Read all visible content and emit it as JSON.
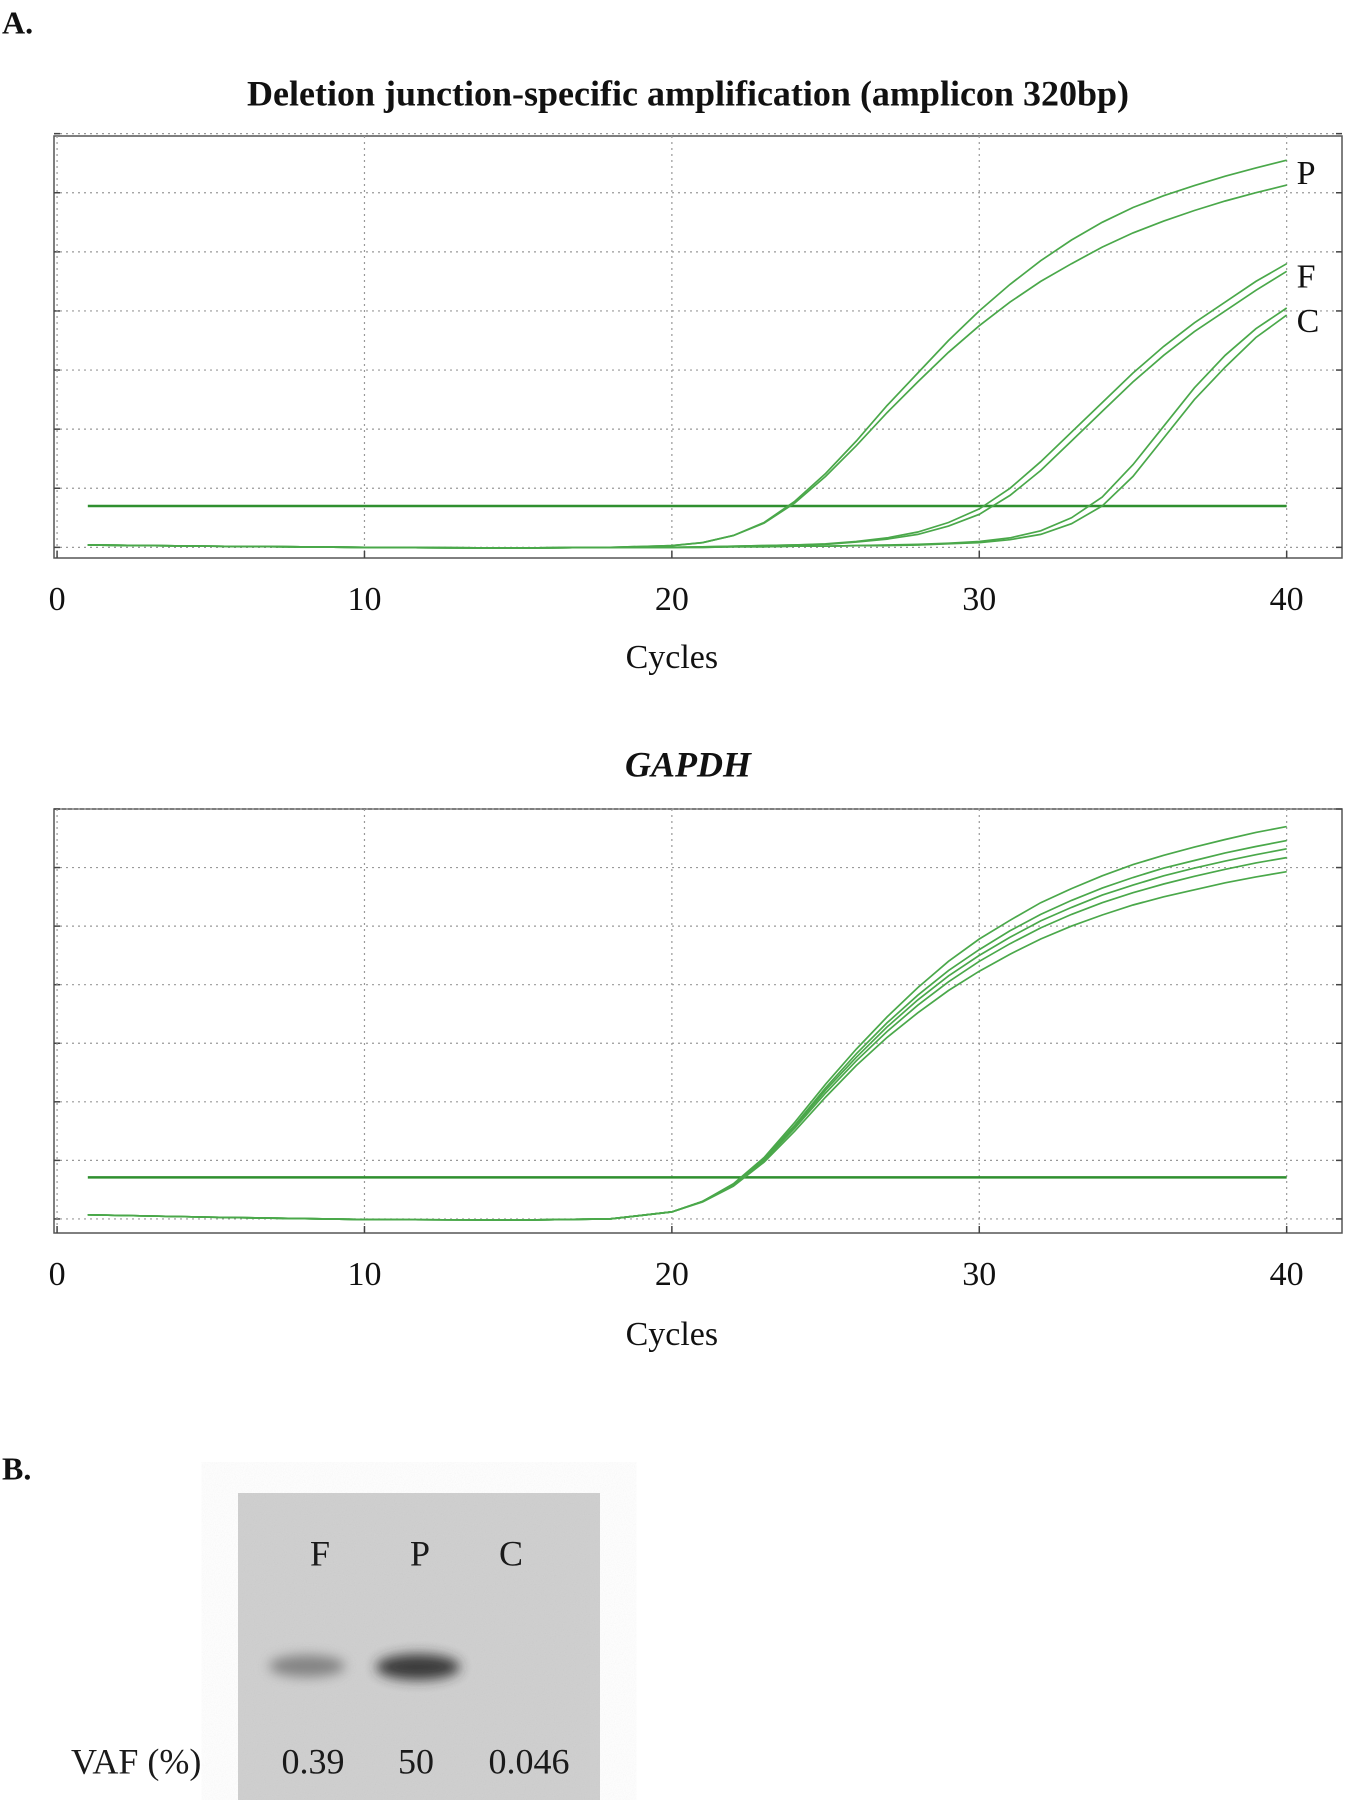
{
  "panels": [
    "A.",
    "B."
  ],
  "chart_data": [
    {
      "type": "line",
      "title": "Deletion junction-specific amplification (amplicon 320bp)",
      "x_label": "Cycles",
      "x": [
        1,
        5,
        10,
        15,
        18,
        20,
        21,
        22,
        23,
        24,
        25,
        26,
        27,
        28,
        29,
        30,
        31,
        32,
        33,
        34,
        35,
        36,
        37,
        38,
        39,
        40
      ],
      "xlim": [
        -0.1,
        41.8
      ],
      "xticks": [
        0,
        10,
        20,
        30,
        40
      ],
      "ylim": [
        -0.18,
        6.96
      ],
      "yticks": [
        0,
        1,
        2,
        3,
        4,
        5,
        6,
        7
      ],
      "grid": true,
      "threshold": 0.7,
      "threshold_color": "#2f8f2f",
      "color": "#4aa84a",
      "series": [
        {
          "name": "P",
          "replicates": [
            [
              0.04,
              0.02,
              0,
              -0.01,
              0,
              0.03,
              0.08,
              0.2,
              0.42,
              0.78,
              1.25,
              1.8,
              2.4,
              2.95,
              3.5,
              4.0,
              4.45,
              4.85,
              5.2,
              5.5,
              5.75,
              5.95,
              6.12,
              6.28,
              6.42,
              6.55
            ],
            [
              0.04,
              0.02,
              0,
              -0.01,
              0,
              0.03,
              0.08,
              0.2,
              0.41,
              0.75,
              1.2,
              1.72,
              2.28,
              2.8,
              3.3,
              3.75,
              4.15,
              4.5,
              4.8,
              5.08,
              5.32,
              5.52,
              5.7,
              5.86,
              6.0,
              6.13
            ]
          ]
        },
        {
          "name": "F",
          "replicates": [
            [
              0.04,
              0.02,
              0,
              -0.01,
              0,
              0,
              0.01,
              0.02,
              0.03,
              0.04,
              0.06,
              0.1,
              0.16,
              0.26,
              0.42,
              0.65,
              1.0,
              1.45,
              1.95,
              2.45,
              2.95,
              3.4,
              3.8,
              4.15,
              4.5,
              4.8
            ],
            [
              0.04,
              0.02,
              0,
              -0.01,
              0,
              0,
              0.01,
              0.02,
              0.03,
              0.04,
              0.05,
              0.09,
              0.14,
              0.22,
              0.36,
              0.56,
              0.88,
              1.3,
              1.8,
              2.3,
              2.8,
              3.25,
              3.65,
              4.0,
              4.35,
              4.67
            ]
          ]
        },
        {
          "name": "C",
          "replicates": [
            [
              0.04,
              0.02,
              0,
              -0.01,
              0,
              0,
              0,
              0.01,
              0.01,
              0.02,
              0.02,
              0.03,
              0.04,
              0.05,
              0.07,
              0.1,
              0.16,
              0.28,
              0.5,
              0.85,
              1.4,
              2.05,
              2.7,
              3.25,
              3.7,
              4.05
            ],
            [
              0.04,
              0.02,
              0,
              -0.01,
              0,
              0,
              0,
              0.01,
              0.01,
              0.02,
              0.02,
              0.03,
              0.03,
              0.04,
              0.06,
              0.08,
              0.13,
              0.22,
              0.4,
              0.7,
              1.2,
              1.85,
              2.5,
              3.05,
              3.55,
              3.93
            ]
          ]
        }
      ]
    },
    {
      "type": "line",
      "title": "GAPDH",
      "x_label": "Cycles",
      "x": [
        1,
        5,
        10,
        15,
        18,
        20,
        21,
        22,
        23,
        24,
        25,
        26,
        27,
        28,
        29,
        30,
        31,
        32,
        33,
        34,
        35,
        36,
        37,
        38,
        39,
        40
      ],
      "xlim": [
        -0.1,
        41.8
      ],
      "xticks": [
        0,
        10,
        20,
        30,
        40
      ],
      "ylim": [
        -0.24,
        7.0
      ],
      "yticks": [
        0,
        1,
        2,
        3,
        4,
        5,
        6,
        7
      ],
      "grid": true,
      "threshold": 0.71,
      "threshold_color": "#2f8f2f",
      "color": "#4aa84a",
      "series": [
        {
          "replicates": [
            [
              0.07,
              0.03,
              -0.01,
              -0.02,
              0,
              0.12,
              0.3,
              0.6,
              1.05,
              1.65,
              2.3,
              2.9,
              3.45,
              3.95,
              4.4,
              4.78,
              5.1,
              5.4,
              5.64,
              5.86,
              6.05,
              6.21,
              6.35,
              6.48,
              6.6,
              6.7
            ],
            [
              0.07,
              0.03,
              -0.01,
              -0.02,
              0,
              0.12,
              0.3,
              0.59,
              1.03,
              1.6,
              2.24,
              2.82,
              3.35,
              3.82,
              4.24,
              4.6,
              4.92,
              5.2,
              5.44,
              5.65,
              5.83,
              5.99,
              6.12,
              6.25,
              6.36,
              6.46
            ],
            [
              0.07,
              0.03,
              -0.01,
              -0.02,
              0,
              0.12,
              0.3,
              0.58,
              1.02,
              1.58,
              2.2,
              2.76,
              3.28,
              3.74,
              4.15,
              4.5,
              4.81,
              5.09,
              5.32,
              5.53,
              5.7,
              5.86,
              5.99,
              6.11,
              6.22,
              6.32
            ],
            [
              0.07,
              0.03,
              -0.01,
              -0.02,
              0,
              0.12,
              0.3,
              0.58,
              1.0,
              1.55,
              2.15,
              2.7,
              3.2,
              3.65,
              4.05,
              4.4,
              4.7,
              4.97,
              5.2,
              5.4,
              5.57,
              5.72,
              5.85,
              5.97,
              6.08,
              6.17
            ],
            [
              0.07,
              0.03,
              -0.01,
              -0.02,
              0,
              0.12,
              0.29,
              0.56,
              0.97,
              1.5,
              2.08,
              2.62,
              3.1,
              3.52,
              3.9,
              4.23,
              4.52,
              4.78,
              5.0,
              5.19,
              5.36,
              5.5,
              5.62,
              5.74,
              5.84,
              5.93
            ]
          ]
        }
      ]
    }
  ],
  "gel": {
    "lanes": [
      "F",
      "P",
      "C"
    ],
    "row_label": "VAF (%)",
    "vaf": [
      0.39,
      50,
      0.046
    ]
  }
}
